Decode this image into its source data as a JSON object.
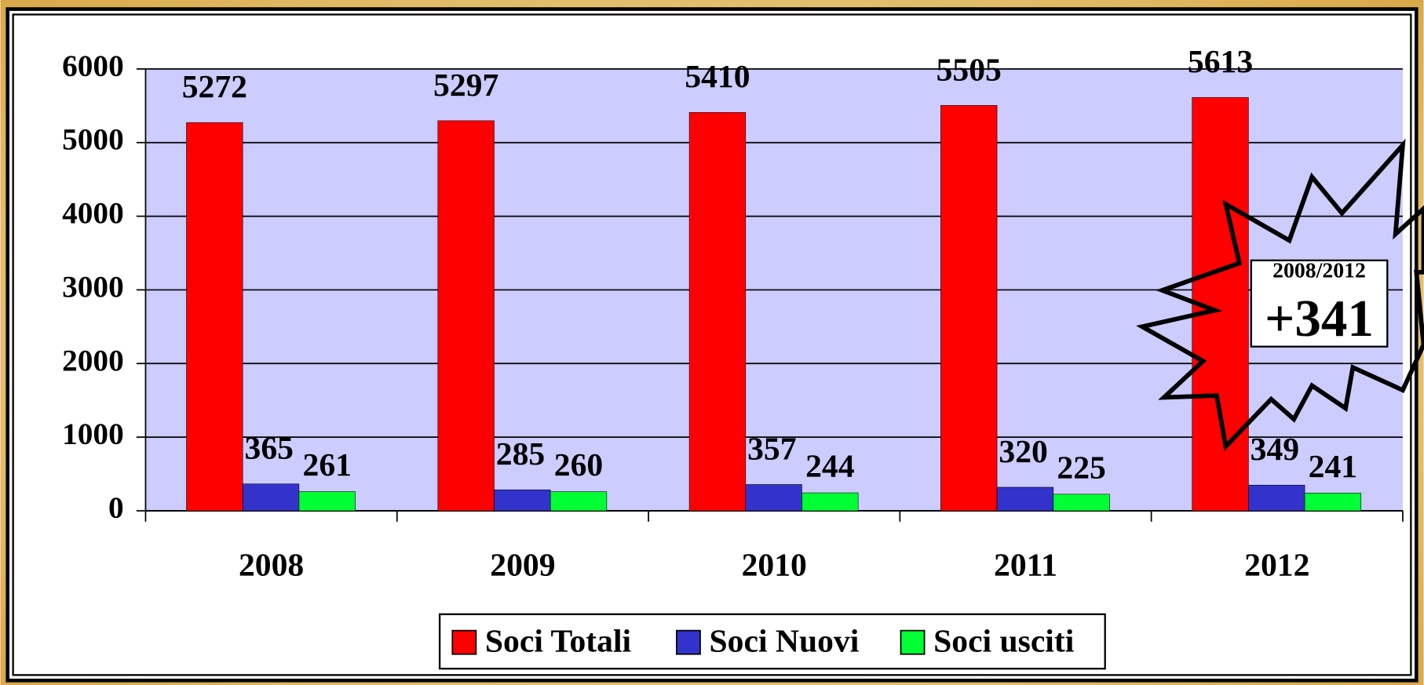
{
  "chart_data": {
    "type": "bar",
    "categories": [
      "2008",
      "2009",
      "2010",
      "2011",
      "2012"
    ],
    "series": [
      {
        "name": "Soci Totali",
        "color": "#ff0000",
        "values": [
          5272,
          5297,
          5410,
          5505,
          5613
        ]
      },
      {
        "name": "Soci Nuovi",
        "color": "#3333cc",
        "values": [
          365,
          285,
          357,
          320,
          349
        ]
      },
      {
        "name": "Soci usciti",
        "color": "#00ff33",
        "values": [
          261,
          260,
          244,
          225,
          241
        ]
      }
    ],
    "ylim": [
      0,
      6000
    ],
    "yticks": [
      0,
      1000,
      2000,
      3000,
      4000,
      5000,
      6000
    ],
    "grid": true,
    "legend": "bottom",
    "plot_background": "#ccccff",
    "annotation": {
      "period": "2008/2012",
      "text": "+341"
    }
  }
}
